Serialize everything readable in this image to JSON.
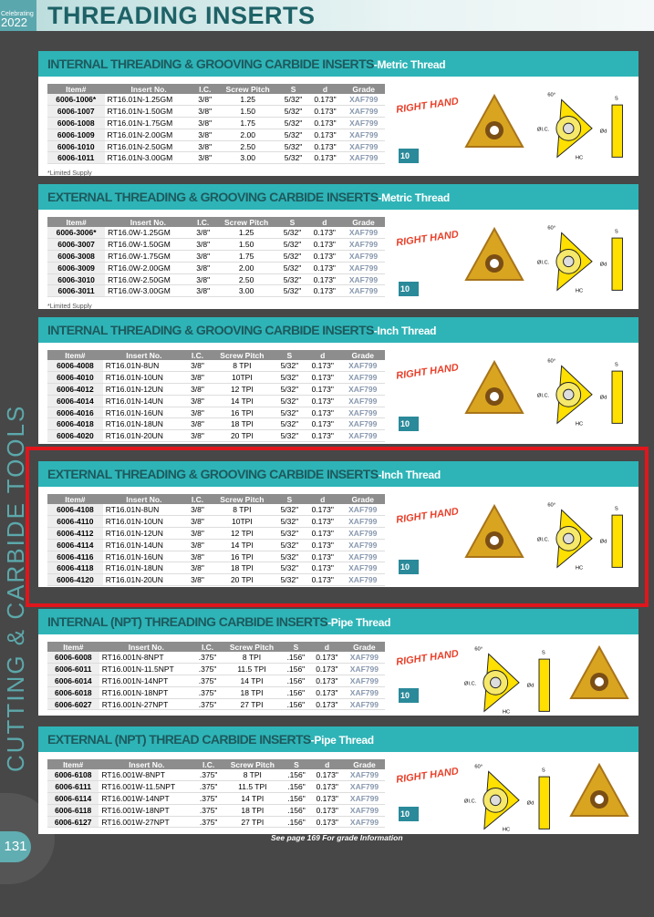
{
  "header": {
    "badge_small": "Celebrating",
    "badge_year": "2022",
    "title": "THREADING INSERTS"
  },
  "side_text": "CUTTING & CARBIDE TOOLS",
  "page_number": "131",
  "footer": "See page 169 For grade Information",
  "right_hand": "RIGHT HAND",
  "package": "10",
  "diagram_labels": {
    "angle": "60°",
    "ic": "ØI.C.",
    "hc": "HC",
    "s": "S",
    "d": "Ød"
  },
  "colors": {
    "teal": "#2eb4b7",
    "highlight": "#e0161d",
    "insert_gold": "#d9a520"
  },
  "sections": [
    {
      "title": "INTERNAL THREADING & GROOVING CARBIDE INSERTS",
      "subtitle": "-Metric Thread",
      "note": "*Limited Supply",
      "headers": [
        "Item#",
        "Insert No.",
        "I.C.",
        "Screw Pitch",
        "S",
        "d",
        "Grade"
      ],
      "rows": [
        [
          "6006-1006*",
          "RT16.01N-1.25GM",
          "3/8\"",
          "1.25",
          "5/32\"",
          "0.173\"",
          "XAF799"
        ],
        [
          "6006-1007",
          "RT16.01N-1.50GM",
          "3/8\"",
          "1.50",
          "5/32\"",
          "0.173\"",
          "XAF799"
        ],
        [
          "6006-1008",
          "RT16.01N-1.75GM",
          "3/8\"",
          "1.75",
          "5/32\"",
          "0.173\"",
          "XAF799"
        ],
        [
          "6006-1009",
          "RT16.01N-2.00GM",
          "3/8\"",
          "2.00",
          "5/32\"",
          "0.173\"",
          "XAF799"
        ],
        [
          "6006-1010",
          "RT16.01N-2.50GM",
          "3/8\"",
          "2.50",
          "5/32\"",
          "0.173\"",
          "XAF799"
        ],
        [
          "6006-1011",
          "RT16.01N-3.00GM",
          "3/8\"",
          "3.00",
          "5/32\"",
          "0.173\"",
          "XAF799"
        ]
      ]
    },
    {
      "title": "EXTERNAL THREADING & GROOVING CARBIDE INSERTS",
      "subtitle": "-Metric Thread",
      "note": "*Limited Supply",
      "headers": [
        "Item#",
        "Insert No.",
        "I.C.",
        "Screw Pitch",
        "S",
        "d",
        "Grade"
      ],
      "rows": [
        [
          "6006-3006*",
          "RT16.0W-1.25GM",
          "3/8\"",
          "1.25",
          "5/32\"",
          "0.173\"",
          "XAF799"
        ],
        [
          "6006-3007",
          "RT16.0W-1.50GM",
          "3/8\"",
          "1.50",
          "5/32\"",
          "0.173\"",
          "XAF799"
        ],
        [
          "6006-3008",
          "RT16.0W-1.75GM",
          "3/8\"",
          "1.75",
          "5/32\"",
          "0.173\"",
          "XAF799"
        ],
        [
          "6006-3009",
          "RT16.0W-2.00GM",
          "3/8\"",
          "2.00",
          "5/32\"",
          "0.173\"",
          "XAF799"
        ],
        [
          "6006-3010",
          "RT16.0W-2.50GM",
          "3/8\"",
          "2.50",
          "5/32\"",
          "0.173\"",
          "XAF799"
        ],
        [
          "6006-3011",
          "RT16.0W-3.00GM",
          "3/8\"",
          "3.00",
          "5/32\"",
          "0.173\"",
          "XAF799"
        ]
      ]
    },
    {
      "title": "INTERNAL THREADING & GROOVING CARBIDE INSERTS",
      "subtitle": "-Inch Thread",
      "headers": [
        "Item#",
        "Insert No.",
        "I.C.",
        "Screw Pitch",
        "S",
        "d",
        "Grade"
      ],
      "rows": [
        [
          "6006-4008",
          "RT16.01N-8UN",
          "3/8\"",
          "8 TPI",
          "5/32\"",
          "0.173\"",
          "XAF799"
        ],
        [
          "6006-4010",
          "RT16.01N-10UN",
          "3/8\"",
          "10TPI",
          "5/32\"",
          "0.173\"",
          "XAF799"
        ],
        [
          "6006-4012",
          "RT16.01N-12UN",
          "3/8\"",
          "12 TPI",
          "5/32\"",
          "0.173\"",
          "XAF799"
        ],
        [
          "6006-4014",
          "RT16.01N-14UN",
          "3/8\"",
          "14 TPI",
          "5/32\"",
          "0.173\"",
          "XAF799"
        ],
        [
          "6006-4016",
          "RT16.01N-16UN",
          "3/8\"",
          "16 TPI",
          "5/32\"",
          "0.173\"",
          "XAF799"
        ],
        [
          "6006-4018",
          "RT16.01N-18UN",
          "3/8\"",
          "18 TPI",
          "5/32\"",
          "0.173\"",
          "XAF799"
        ],
        [
          "6006-4020",
          "RT16.01N-20UN",
          "3/8\"",
          "20 TPI",
          "5/32\"",
          "0.173\"",
          "XAF799"
        ]
      ]
    },
    {
      "title": "EXTERNAL THREADING & GROOVING CARBIDE INSERTS",
      "subtitle": "-Inch Thread",
      "highlighted": true,
      "headers": [
        "Item#",
        "Insert No.",
        "I.C.",
        "Screw Pitch",
        "S",
        "d",
        "Grade"
      ],
      "rows": [
        [
          "6006-4108",
          "RT16.01N-8UN",
          "3/8\"",
          "8 TPI",
          "5/32\"",
          "0.173\"",
          "XAF799"
        ],
        [
          "6006-4110",
          "RT16.01N-10UN",
          "3/8\"",
          "10TPI",
          "5/32\"",
          "0.173\"",
          "XAF799"
        ],
        [
          "6006-4112",
          "RT16.01N-12UN",
          "3/8\"",
          "12 TPI",
          "5/32\"",
          "0.173\"",
          "XAF799"
        ],
        [
          "6006-4114",
          "RT16.01N-14UN",
          "3/8\"",
          "14 TPI",
          "5/32\"",
          "0.173\"",
          "XAF799"
        ],
        [
          "6006-4116",
          "RT16.01N-16UN",
          "3/8\"",
          "16 TPI",
          "5/32\"",
          "0.173\"",
          "XAF799"
        ],
        [
          "6006-4118",
          "RT16.01N-18UN",
          "3/8\"",
          "18 TPI",
          "5/32\"",
          "0.173\"",
          "XAF799"
        ],
        [
          "6006-4120",
          "RT16.01N-20UN",
          "3/8\"",
          "20 TPI",
          "5/32\"",
          "0.173\"",
          "XAF799"
        ]
      ]
    },
    {
      "title": "INTERNAL (NPT) THREADING CARBIDE INSERTS",
      "subtitle": "-Pipe Thread",
      "headers": [
        "Item#",
        "Insert No.",
        "I.C.",
        "Screw Pitch",
        "S",
        "d",
        "Grade"
      ],
      "rows": [
        [
          "6006-6008",
          "RT16.001N-8NPT",
          ".375\"",
          "8 TPI",
          ".156\"",
          "0.173\"",
          "XAF799"
        ],
        [
          "6006-6011",
          "RT16.001N-11.5NPT",
          ".375\"",
          "11.5 TPI",
          ".156\"",
          "0.173\"",
          "XAF799"
        ],
        [
          "6006-6014",
          "RT16.001N-14NPT",
          ".375\"",
          "14 TPI",
          ".156\"",
          "0.173\"",
          "XAF799"
        ],
        [
          "6006-6018",
          "RT16.001N-18NPT",
          ".375\"",
          "18 TPI",
          ".156\"",
          "0.173\"",
          "XAF799"
        ],
        [
          "6006-6027",
          "RT16.001N-27NPT",
          ".375\"",
          "27 TPI",
          ".156\"",
          "0.173\"",
          "XAF799"
        ]
      ]
    },
    {
      "title": "EXTERNAL (NPT) THREAD CARBIDE INSERTS",
      "subtitle": "-Pipe Thread",
      "headers": [
        "Item#",
        "Insert No.",
        "I.C.",
        "Screw Pitch",
        "S",
        "d",
        "Grade"
      ],
      "rows": [
        [
          "6006-6108",
          "RT16.001W-8NPT",
          ".375\"",
          "8 TPI",
          ".156\"",
          "0.173\"",
          "XAF799"
        ],
        [
          "6006-6111",
          "RT16.001W-11.5NPT",
          ".375\"",
          "11.5 TPI",
          ".156\"",
          "0.173\"",
          "XAF799"
        ],
        [
          "6006-6114",
          "RT16.001W-14NPT",
          ".375\"",
          "14 TPI",
          ".156\"",
          "0.173\"",
          "XAF799"
        ],
        [
          "6006-6118",
          "RT16.001W-18NPT",
          ".375\"",
          "18 TPI",
          ".156\"",
          "0.173\"",
          "XAF799"
        ],
        [
          "6006-6127",
          "RT16.001W-27NPT",
          ".375\"",
          "27 TPI",
          ".156\"",
          "0.173\"",
          "XAF799"
        ]
      ]
    }
  ]
}
